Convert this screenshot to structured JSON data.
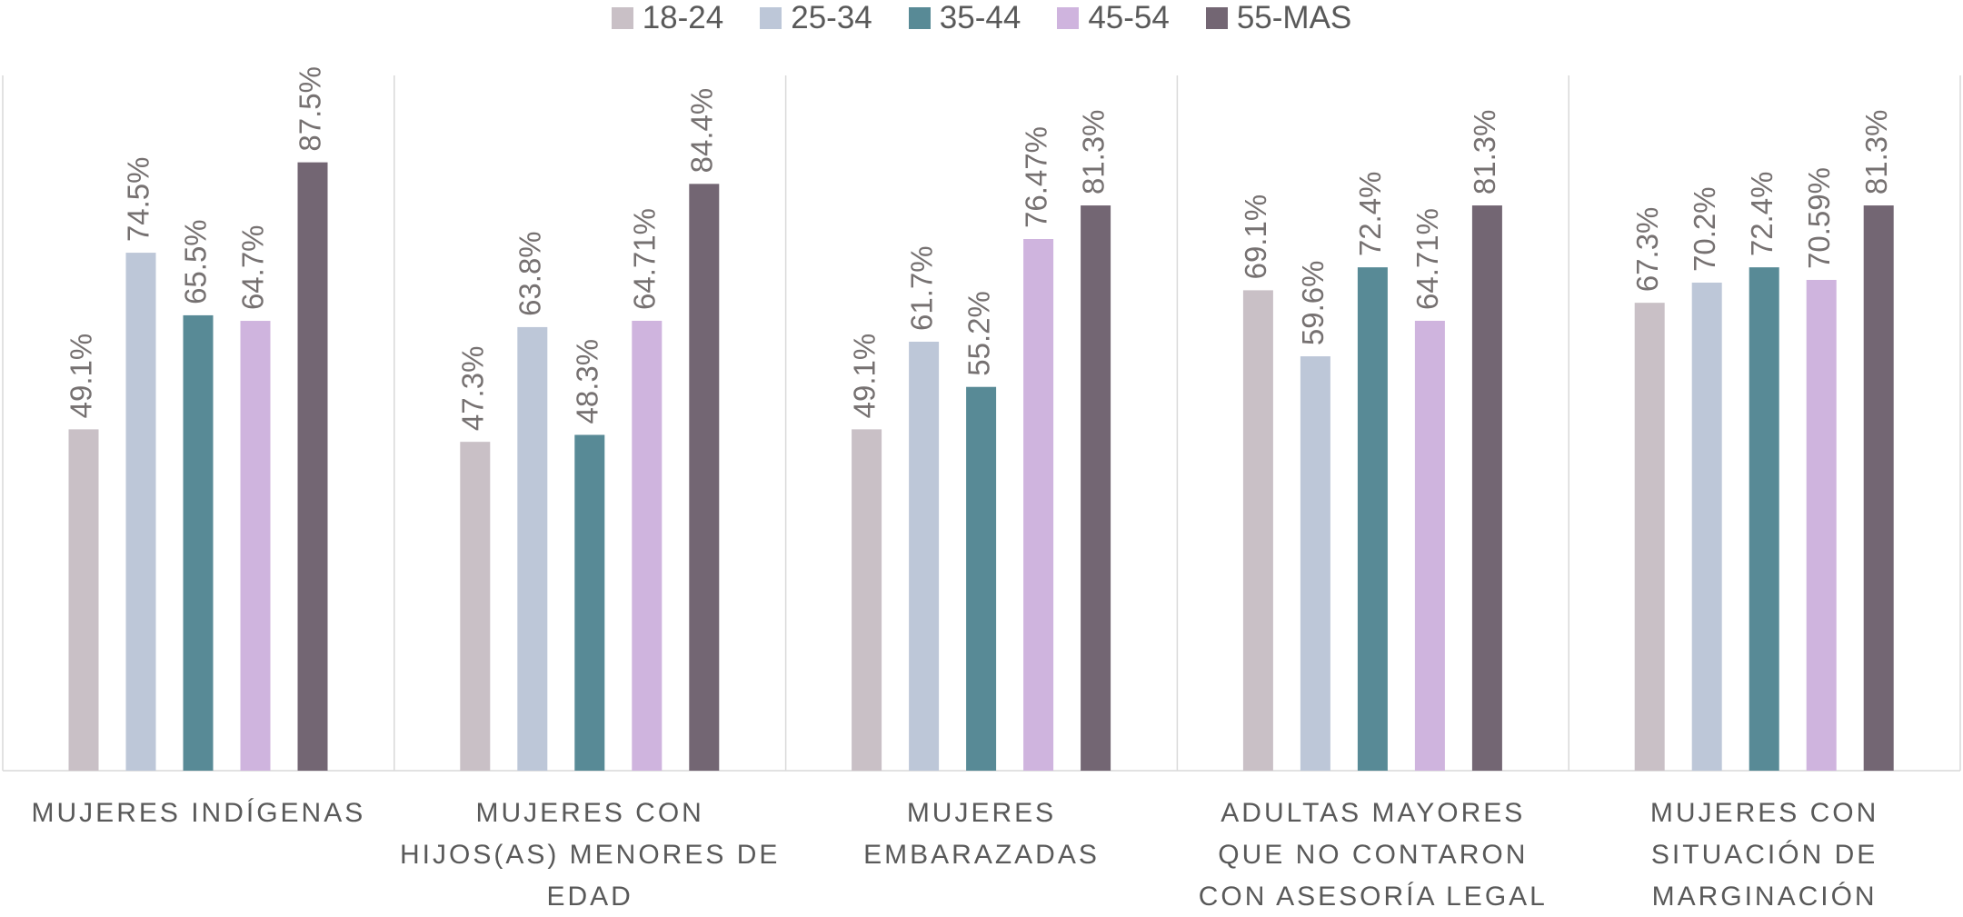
{
  "chart_data": {
    "type": "bar",
    "categories": [
      "MUJERES INDÍGENAS",
      "MUJERES CON HIJOS(AS) MENORES DE EDAD",
      "MUJERES EMBARAZADAS",
      "ADULTAS MAYORES QUE NO CONTARON CON ASESORÍA LEGAL",
      "MUJERES CON SITUACIÓN DE MARGINACIÓN"
    ],
    "series": [
      {
        "name": "18-24",
        "color": "#c9c0c6",
        "values": [
          49.1,
          47.3,
          49.1,
          69.1,
          67.3
        ],
        "value_labels": [
          "49.1%",
          "47.3%",
          "49.1%",
          "69.1%",
          "67.3%"
        ]
      },
      {
        "name": "25-34",
        "color": "#bdc7d8",
        "values": [
          74.5,
          63.8,
          61.7,
          59.6,
          70.2
        ],
        "value_labels": [
          "74.5%",
          "63.8%",
          "61.7%",
          "59.6%",
          "70.2%"
        ]
      },
      {
        "name": "35-44",
        "color": "#588a96",
        "values": [
          65.5,
          48.3,
          55.2,
          72.4,
          72.4
        ],
        "value_labels": [
          "65.5%",
          "48.3%",
          "55.2%",
          "72.4%",
          "72.4%"
        ]
      },
      {
        "name": "45-54",
        "color": "#cfb4de",
        "values": [
          64.7,
          64.71,
          76.47,
          64.71,
          70.59
        ],
        "value_labels": [
          "64.7%",
          "64.71%",
          "76.47%",
          "64.71%",
          "70.59%"
        ]
      },
      {
        "name": "55-MAS",
        "color": "#736673",
        "values": [
          87.5,
          84.4,
          81.3,
          81.3,
          81.3
        ],
        "value_labels": [
          "87.5%",
          "84.4%",
          "81.3%",
          "81.3%",
          "81.3%"
        ]
      }
    ],
    "ylim": [
      0,
      100
    ],
    "legend": "top"
  }
}
